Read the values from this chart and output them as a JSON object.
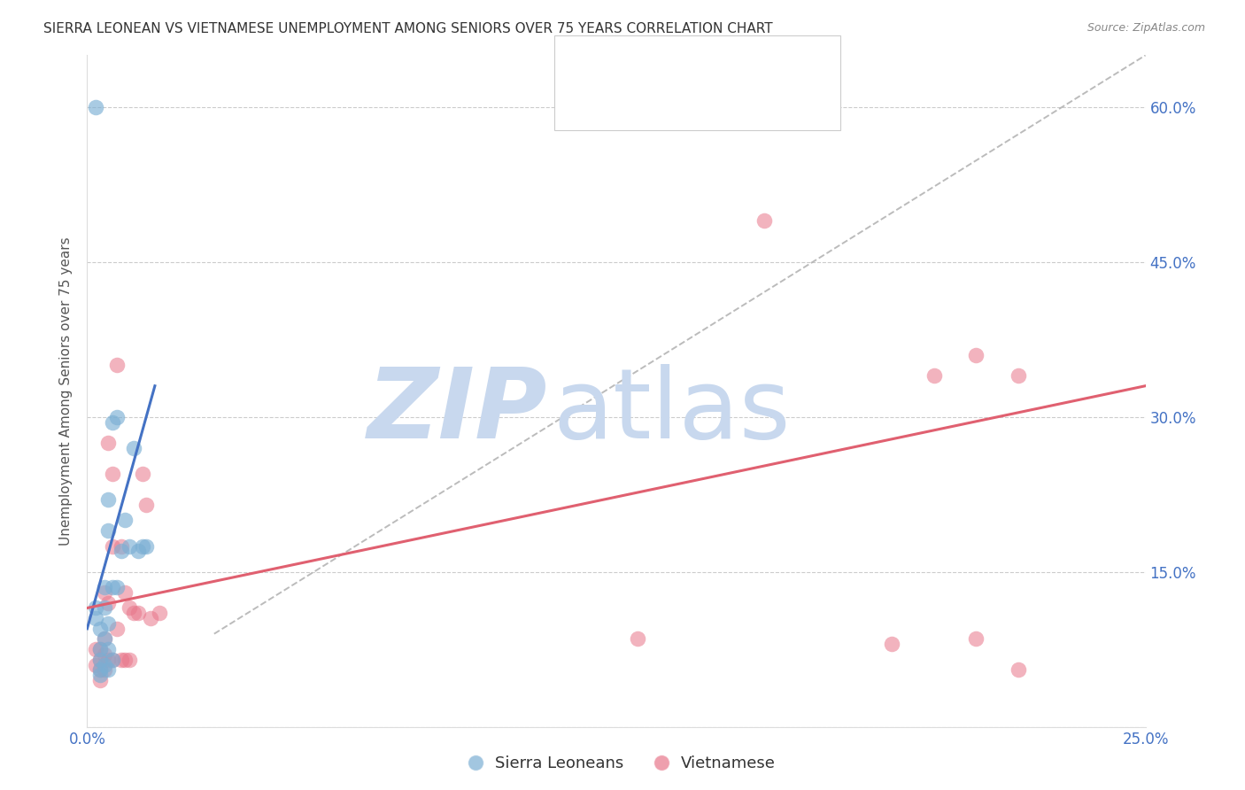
{
  "title": "SIERRA LEONEAN VS VIETNAMESE UNEMPLOYMENT AMONG SENIORS OVER 75 YEARS CORRELATION CHART",
  "source": "Source: ZipAtlas.com",
  "ylabel": "Unemployment Among Seniors over 75 years",
  "xlim": [
    0.0,
    0.25
  ],
  "ylim": [
    0.0,
    0.65
  ],
  "background_color": "#ffffff",
  "grid_color": "#cccccc",
  "title_color": "#333333",
  "tick_color": "#4472c4",
  "watermark_zip_color": "#c8d8ee",
  "watermark_atlas_color": "#c8d8ee",
  "sierra_color": "#7bafd4",
  "vietnamese_color": "#e8768a",
  "sierra_line_color": "#4472c4",
  "vietnamese_line_color": "#e06070",
  "ref_line_color": "#b0b0b0",
  "sierra_label": "Sierra Leoneans",
  "vietnamese_label": "Vietnamese",
  "sierra_x": [
    0.002,
    0.002,
    0.003,
    0.003,
    0.003,
    0.003,
    0.004,
    0.004,
    0.004,
    0.004,
    0.005,
    0.005,
    0.005,
    0.005,
    0.005,
    0.006,
    0.006,
    0.006,
    0.007,
    0.007,
    0.008,
    0.009,
    0.01,
    0.011,
    0.012,
    0.013,
    0.014,
    0.003,
    0.002
  ],
  "sierra_y": [
    0.115,
    0.105,
    0.095,
    0.075,
    0.065,
    0.055,
    0.135,
    0.115,
    0.085,
    0.06,
    0.22,
    0.19,
    0.1,
    0.075,
    0.055,
    0.295,
    0.135,
    0.065,
    0.3,
    0.135,
    0.17,
    0.2,
    0.175,
    0.27,
    0.17,
    0.175,
    0.175,
    0.05,
    0.6
  ],
  "vietnamese_x": [
    0.002,
    0.002,
    0.003,
    0.003,
    0.003,
    0.003,
    0.004,
    0.004,
    0.004,
    0.004,
    0.005,
    0.005,
    0.005,
    0.006,
    0.006,
    0.006,
    0.007,
    0.007,
    0.008,
    0.008,
    0.009,
    0.009,
    0.01,
    0.01,
    0.011,
    0.012,
    0.013,
    0.014,
    0.015,
    0.017,
    0.13,
    0.16,
    0.19,
    0.2,
    0.21,
    0.21,
    0.22,
    0.22
  ],
  "vietnamese_y": [
    0.075,
    0.06,
    0.075,
    0.065,
    0.055,
    0.045,
    0.13,
    0.085,
    0.07,
    0.055,
    0.275,
    0.12,
    0.065,
    0.245,
    0.175,
    0.065,
    0.35,
    0.095,
    0.175,
    0.065,
    0.13,
    0.065,
    0.115,
    0.065,
    0.11,
    0.11,
    0.245,
    0.215,
    0.105,
    0.11,
    0.085,
    0.49,
    0.08,
    0.34,
    0.36,
    0.085,
    0.055,
    0.34
  ],
  "sierra_line_x": [
    0.0,
    0.016
  ],
  "sierra_line_y": [
    0.095,
    0.33
  ],
  "vietnamese_line_x": [
    0.0,
    0.25
  ],
  "vietnamese_line_y": [
    0.115,
    0.33
  ],
  "ref_line_x": [
    0.03,
    0.25
  ],
  "ref_line_y": [
    0.09,
    0.65
  ]
}
